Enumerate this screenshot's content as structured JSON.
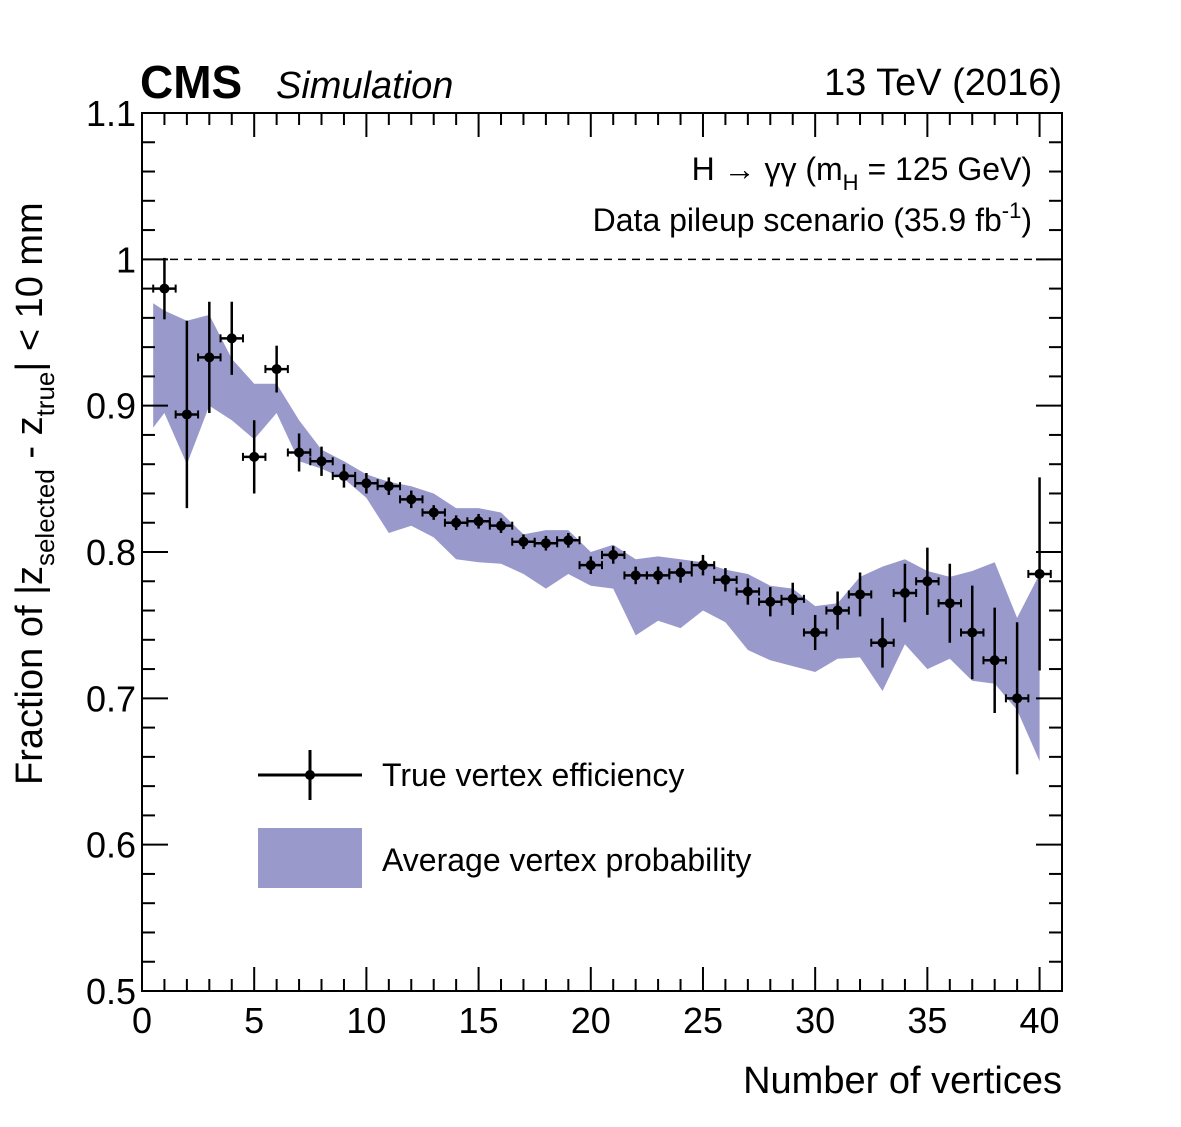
{
  "header": {
    "experiment": "CMS",
    "tag": "Simulation",
    "energy": "13 TeV (2016)"
  },
  "annotations": {
    "process_main": "H → γγ (m",
    "process_sub": "H",
    "process_tail": " = 125 GeV)",
    "pileup_main": "Data pileup scenario (35.9 fb",
    "pileup_sup": "-1",
    "pileup_tail": ")"
  },
  "axes": {
    "xlabel": "Number of vertices",
    "ylabel_part1": "Fraction of |z",
    "ylabel_sub1": "selected",
    "ylabel_part2": " - z",
    "ylabel_sub2": "true",
    "ylabel_part3": "| < 10 mm"
  },
  "colors": {
    "band": "#9999cc",
    "points": "#000000",
    "reference_line": "#000000"
  },
  "chart_data": {
    "type": "scatter",
    "xlim": [
      0,
      41
    ],
    "ylim": [
      0.5,
      1.1
    ],
    "x_ticks": [
      "0",
      "5",
      "10",
      "15",
      "20",
      "25",
      "30",
      "35",
      "40"
    ],
    "y_ticks": [
      "0.5",
      "0.6",
      "0.7",
      "0.8",
      "0.9",
      "1",
      "1.1"
    ],
    "x_tick_values": [
      0,
      5,
      10,
      15,
      20,
      25,
      30,
      35,
      40
    ],
    "y_tick_values": [
      0.5,
      0.6,
      0.7,
      0.8,
      0.9,
      1.0,
      1.1
    ],
    "reference_line": 1.0,
    "legend": {
      "position": "lower-left",
      "entries": [
        "True vertex efficiency",
        "Average vertex probability"
      ]
    },
    "series": [
      {
        "name": "True vertex efficiency",
        "kind": "points",
        "x": [
          1,
          2,
          3,
          4,
          5,
          6,
          7,
          8,
          9,
          10,
          11,
          12,
          13,
          14,
          15,
          16,
          17,
          18,
          19,
          20,
          21,
          22,
          23,
          24,
          25,
          26,
          27,
          28,
          29,
          30,
          31,
          32,
          33,
          34,
          35,
          36,
          37,
          38,
          39,
          40
        ],
        "y": [
          0.98,
          0.894,
          0.933,
          0.946,
          0.865,
          0.925,
          0.868,
          0.862,
          0.852,
          0.847,
          0.845,
          0.836,
          0.827,
          0.82,
          0.821,
          0.818,
          0.807,
          0.806,
          0.808,
          0.791,
          0.798,
          0.784,
          0.784,
          0.786,
          0.791,
          0.781,
          0.773,
          0.766,
          0.768,
          0.745,
          0.76,
          0.771,
          0.738,
          0.772,
          0.78,
          0.765,
          0.745,
          0.726,
          0.7,
          0.785
        ],
        "y_err": [
          0.021,
          0.064,
          0.038,
          0.025,
          0.025,
          0.016,
          0.013,
          0.01,
          0.008,
          0.007,
          0.006,
          0.006,
          0.005,
          0.005,
          0.005,
          0.005,
          0.005,
          0.005,
          0.005,
          0.006,
          0.006,
          0.006,
          0.006,
          0.007,
          0.007,
          0.008,
          0.009,
          0.01,
          0.011,
          0.012,
          0.013,
          0.015,
          0.017,
          0.02,
          0.023,
          0.027,
          0.032,
          0.036,
          0.052,
          0.066
        ],
        "x_err": 0.5
      },
      {
        "name": "Average vertex probability",
        "kind": "band",
        "x": [
          0.5,
          1,
          2,
          3,
          4,
          5,
          6,
          7,
          8,
          9,
          10,
          11,
          12,
          13,
          14,
          15,
          16,
          17,
          18,
          19,
          20,
          21,
          22,
          23,
          24,
          25,
          26,
          27,
          28,
          29,
          30,
          31,
          32,
          33,
          34,
          35,
          36,
          37,
          38,
          39,
          40
        ],
        "upper": [
          0.97,
          0.965,
          0.958,
          0.962,
          0.932,
          0.915,
          0.915,
          0.89,
          0.87,
          0.862,
          0.853,
          0.848,
          0.845,
          0.84,
          0.83,
          0.83,
          0.827,
          0.812,
          0.815,
          0.815,
          0.8,
          0.805,
          0.795,
          0.797,
          0.795,
          0.793,
          0.788,
          0.785,
          0.777,
          0.775,
          0.763,
          0.765,
          0.783,
          0.79,
          0.795,
          0.787,
          0.783,
          0.787,
          0.793,
          0.755,
          0.785
        ],
        "lower": [
          0.885,
          0.895,
          0.86,
          0.9,
          0.89,
          0.877,
          0.895,
          0.862,
          0.857,
          0.85,
          0.837,
          0.813,
          0.818,
          0.81,
          0.795,
          0.793,
          0.792,
          0.785,
          0.775,
          0.785,
          0.777,
          0.775,
          0.743,
          0.753,
          0.748,
          0.76,
          0.752,
          0.733,
          0.726,
          0.722,
          0.718,
          0.727,
          0.728,
          0.705,
          0.737,
          0.72,
          0.727,
          0.712,
          0.71,
          0.692,
          0.657
        ]
      }
    ]
  }
}
